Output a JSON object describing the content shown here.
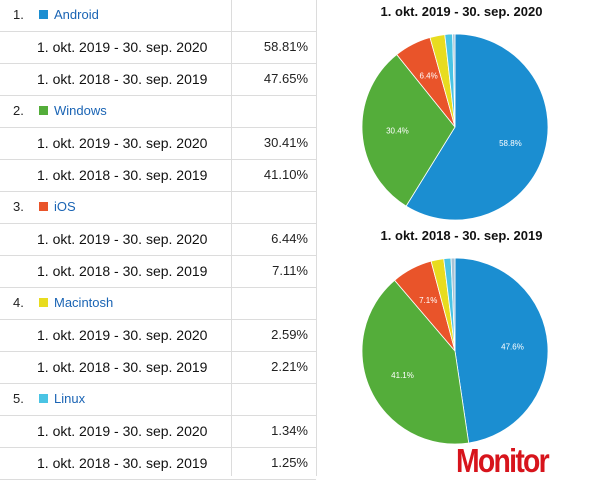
{
  "colors": {
    "Android": "#1b8ed1",
    "Windows": "#54ad3a",
    "iOS": "#e9542a",
    "Macintosh": "#e8dc1f",
    "Linux": "#4ac4e4"
  },
  "table": {
    "groups": [
      {
        "rank": "1.",
        "name": "Android",
        "rows": [
          {
            "period": "1. okt. 2019 - 30. sep. 2020",
            "pct": "58.81%"
          },
          {
            "period": "1. okt. 2018 - 30. sep. 2019",
            "pct": "47.65%"
          }
        ]
      },
      {
        "rank": "2.",
        "name": "Windows",
        "rows": [
          {
            "period": "1. okt. 2019 - 30. sep. 2020",
            "pct": "30.41%"
          },
          {
            "period": "1. okt. 2018 - 30. sep. 2019",
            "pct": "41.10%"
          }
        ]
      },
      {
        "rank": "3.",
        "name": "iOS",
        "rows": [
          {
            "period": "1. okt. 2019 - 30. sep. 2020",
            "pct": "6.44%"
          },
          {
            "period": "1. okt. 2018 - 30. sep. 2019",
            "pct": "7.11%"
          }
        ]
      },
      {
        "rank": "4.",
        "name": "Macintosh",
        "rows": [
          {
            "period": "1. okt. 2019 - 30. sep. 2020",
            "pct": "2.59%"
          },
          {
            "period": "1. okt. 2018 - 30. sep. 2019",
            "pct": "2.21%"
          }
        ]
      },
      {
        "rank": "5.",
        "name": "Linux",
        "rows": [
          {
            "period": "1. okt. 2019 - 30. sep. 2020",
            "pct": "1.34%"
          },
          {
            "period": "1. okt. 2018 - 30. sep. 2019",
            "pct": "1.25%"
          }
        ]
      }
    ]
  },
  "chart_data": [
    {
      "type": "pie",
      "title": "1. okt. 2019 - 30. sep. 2020",
      "categories": [
        "Android",
        "Windows",
        "iOS",
        "Macintosh",
        "Linux",
        "Other"
      ],
      "values": [
        58.81,
        30.41,
        6.44,
        2.59,
        1.34,
        0.41
      ],
      "slice_labels": [
        "58.8%",
        "30.4%",
        "6.4%",
        "",
        "",
        ""
      ]
    },
    {
      "type": "pie",
      "title": "1. okt. 2018 - 30. sep. 2019",
      "categories": [
        "Android",
        "Windows",
        "iOS",
        "Macintosh",
        "Linux",
        "Other"
      ],
      "values": [
        47.65,
        41.1,
        7.11,
        2.21,
        1.25,
        0.68
      ],
      "slice_labels": [
        "47.6%",
        "41.1%",
        "7.1%",
        "",
        "",
        ""
      ]
    }
  ],
  "other_color": "#a7c3d6",
  "logo": {
    "text": "Monitor"
  }
}
